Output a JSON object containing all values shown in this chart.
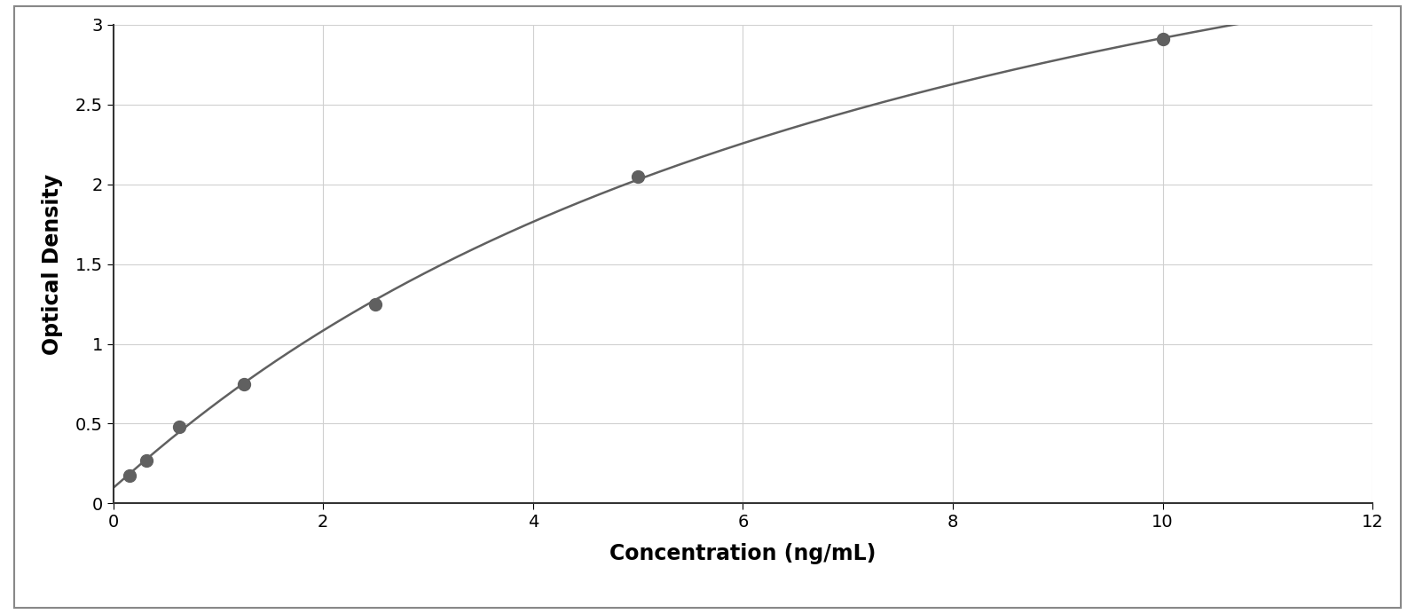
{
  "x_data": [
    0.156,
    0.313,
    0.625,
    1.25,
    2.5,
    5.0,
    10.0
  ],
  "y_data": [
    0.175,
    0.27,
    0.48,
    0.75,
    1.25,
    2.05,
    2.91
  ],
  "xlabel": "Concentration (ng/mL)",
  "ylabel": "Optical Density",
  "xlim": [
    0,
    12
  ],
  "ylim": [
    0,
    3.0
  ],
  "xticks": [
    0,
    2,
    4,
    6,
    8,
    10,
    12
  ],
  "yticks": [
    0,
    0.5,
    1.0,
    1.5,
    2.0,
    2.5,
    3.0
  ],
  "data_color": "#606060",
  "line_color": "#606060",
  "grid_color": "#d0d0d0",
  "background_color": "#ffffff",
  "border_color": "#333333",
  "outer_border_color": "#888888",
  "marker_size": 10,
  "line_width": 1.8,
  "xlabel_fontsize": 17,
  "ylabel_fontsize": 17,
  "tick_fontsize": 14,
  "figure_bg": "#ffffff"
}
